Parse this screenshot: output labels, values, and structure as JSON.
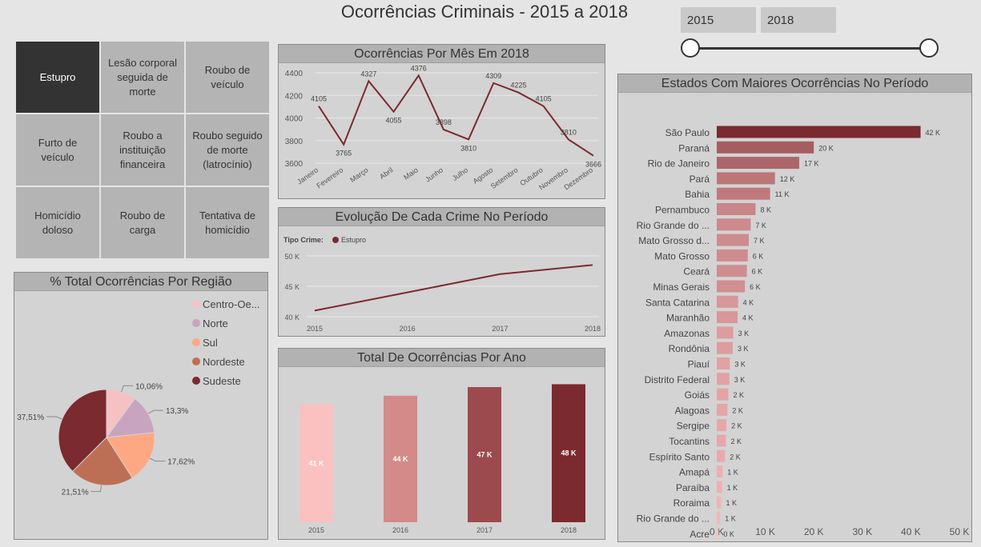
{
  "page": {
    "title": "Ocorrências Criminais - 2015 a 2018"
  },
  "slicer": {
    "start": "2015",
    "end": "2018"
  },
  "crime_buttons": [
    {
      "label": "Estupro",
      "selected": true
    },
    {
      "label": "Lesão corporal seguida de morte",
      "selected": false
    },
    {
      "label": "Roubo de veículo",
      "selected": false
    },
    {
      "label": "Furto de veículo",
      "selected": false
    },
    {
      "label": "Roubo a instituição financeira",
      "selected": false
    },
    {
      "label": "Roubo seguido de morte (latrocínio)",
      "selected": false
    },
    {
      "label": "Homicídio doloso",
      "selected": false
    },
    {
      "label": "Roubo de carga",
      "selected": false
    },
    {
      "label": "Tentativa de homicídio",
      "selected": false
    }
  ],
  "colors": {
    "main": "#7b2a2f",
    "grid": "#e8e8e8"
  },
  "chart_data": [
    {
      "id": "monthly",
      "type": "line",
      "title": "Ocorrências Por Mês Em 2018",
      "categories": [
        "Janeiro",
        "Fevereiro",
        "Março",
        "Abril",
        "Maio",
        "Junho",
        "Julho",
        "Agosto",
        "Setembro",
        "Outubro",
        "Novembro",
        "Dezembro"
      ],
      "values": [
        4105,
        3765,
        4327,
        4055,
        4376,
        3898,
        3810,
        4309,
        4225,
        4105,
        3810,
        3666
      ],
      "labels": [
        "4105",
        "3765",
        "4327",
        "4055",
        "4376",
        "3898",
        "3810",
        "4309",
        "4225",
        "4105",
        "3810",
        "3666"
      ],
      "ylim": [
        3600,
        4400
      ],
      "yticks": [
        3600,
        3800,
        4000,
        4200,
        4400
      ],
      "grid": true
    },
    {
      "id": "evolution",
      "type": "line",
      "title": "Evolução De Cada Crime No Período",
      "legend_title": "Tipo Crime:",
      "series": [
        {
          "name": "Estupro",
          "color": "#7b2a2f"
        }
      ],
      "x": [
        "2015",
        "2016",
        "2017",
        "2018"
      ],
      "values": [
        41000,
        44000,
        47000,
        48500
      ],
      "ylim": [
        40000,
        50000
      ],
      "yticks": [
        40000,
        45000,
        50000
      ],
      "ytick_labels": [
        "40 K",
        "45 K",
        "50 K"
      ],
      "grid": true
    },
    {
      "id": "yearly",
      "type": "bar",
      "title": "Total De Ocorrências Por Ano",
      "categories": [
        "2015",
        "2016",
        "2017",
        "2018"
      ],
      "values": [
        41000,
        44000,
        47000,
        48000
      ],
      "labels": [
        "41 K",
        "44 K",
        "47 K",
        "48 K"
      ],
      "colors": [
        "#fbc0c0",
        "#d38a89",
        "#9d4a4e",
        "#7b2a2f"
      ]
    },
    {
      "id": "region",
      "type": "pie",
      "title": "% Total Ocorrências Por Região",
      "slices": [
        {
          "name": "Centro-Oe...",
          "value": 10.06,
          "label": "10,06%",
          "color": "#f6c1c2"
        },
        {
          "name": "Norte",
          "value": 13.3,
          "label": "13,3%",
          "color": "#c9a4c0"
        },
        {
          "name": "Sul",
          "value": 17.62,
          "label": "17,62%",
          "color": "#fda882"
        },
        {
          "name": "Nordeste",
          "value": 21.51,
          "label": "21,51%",
          "color": "#bd6f55"
        },
        {
          "name": "Sudeste",
          "value": 37.51,
          "label": "37,51%",
          "color": "#7b2a2f"
        }
      ],
      "legend_position": "right"
    },
    {
      "id": "states",
      "type": "bar",
      "orientation": "horizontal",
      "title": "Estados Com Maiores Ocorrências No Período",
      "categories": [
        "São Paulo",
        "Paraná",
        "Rio de Janeiro",
        "Pará",
        "Bahia",
        "Pernambuco",
        "Rio Grande do ...",
        "Mato Grosso d...",
        "Mato Grosso",
        "Ceará",
        "Minas Gerais",
        "Santa Catarina",
        "Maranhão",
        "Amazonas",
        "Rondônia",
        "Piauí",
        "Distrito Federal",
        "Goiás",
        "Alagoas",
        "Sergipe",
        "Tocantins",
        "Espírito Santo",
        "Amapá",
        "Paraíba",
        "Roraima",
        "Rio Grande do ...",
        "Acre"
      ],
      "values": [
        42000,
        20000,
        17000,
        12000,
        11000,
        8000,
        7000,
        6600,
        6400,
        6200,
        5800,
        4400,
        4300,
        3400,
        3300,
        2700,
        2600,
        2400,
        2200,
        2000,
        1900,
        1700,
        1200,
        1100,
        900,
        700,
        400
      ],
      "labels": [
        "42 K",
        "20 K",
        "17 K",
        "12 K",
        "11 K",
        "8 K",
        "7 K",
        "7 K",
        "6 K",
        "6 K",
        "6 K",
        "4 K",
        "4 K",
        "3 K",
        "3 K",
        "3 K",
        "3 K",
        "2 K",
        "2 K",
        "2 K",
        "2 K",
        "2 K",
        "1 K",
        "1 K",
        "1 K",
        "1 K",
        "0 K"
      ],
      "xlim": [
        0,
        50000
      ],
      "xticks": [
        0,
        10000,
        20000,
        30000,
        40000,
        50000
      ],
      "xtick_labels": [
        "0 K",
        "10 K",
        "20 K",
        "30 K",
        "40 K",
        "50 K"
      ],
      "max_color": "#7b2a2f",
      "min_color": "#fbc0c0"
    }
  ]
}
